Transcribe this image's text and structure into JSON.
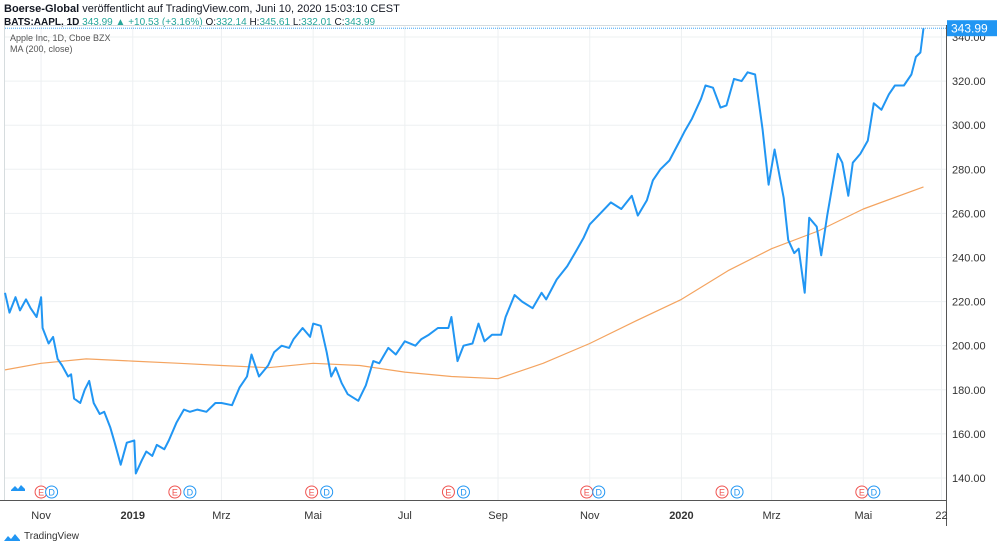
{
  "header": {
    "publisher": "Boerse-Global",
    "published_text": "veröffentlicht auf TradingView.com, Juni 10, 2020 15:03:10 CEST"
  },
  "quote": {
    "symbol": "BATS:AAPL, 1D",
    "last": "343.99",
    "arrow": "▲",
    "change": "+10.53 (+3.16%)",
    "open_label": "O:",
    "open": "332.14",
    "high_label": "H:",
    "high": "345.61",
    "low_label": "L:",
    "low": "332.01",
    "close_label": "C:",
    "close": "343.99"
  },
  "legend": {
    "series_name": "Apple Inc, 1D, Cboe BZX",
    "ma_name": "MA (200, close)"
  },
  "footer": {
    "brand": "TradingView"
  },
  "colors": {
    "price": "#2196f3",
    "ma": "#f4a460",
    "last_label_bg": "#2196f3",
    "earnings": "#ef5350",
    "dividend": "#2196f3"
  },
  "chart_data": {
    "type": "line",
    "ylim": [
      130,
      345
    ],
    "yticks": [
      140,
      160,
      180,
      200,
      220,
      240,
      260,
      280,
      300,
      320,
      340
    ],
    "ytick_labels": [
      "140.00",
      "160.00",
      "180.00",
      "200.00",
      "220.00",
      "240.00",
      "260.00",
      "280.00",
      "300.00",
      "320.00",
      "340.00"
    ],
    "last_value_label": "343.99",
    "x_range": [
      "2018-10-08",
      "2020-06-25"
    ],
    "xticks": [
      {
        "date": "2018-11-01",
        "label": "Nov",
        "bold": false
      },
      {
        "date": "2019-01-01",
        "label": "2019",
        "bold": true
      },
      {
        "date": "2019-03-01",
        "label": "Mrz",
        "bold": false
      },
      {
        "date": "2019-05-01",
        "label": "Mai",
        "bold": false
      },
      {
        "date": "2019-07-01",
        "label": "Jul",
        "bold": false
      },
      {
        "date": "2019-09-01",
        "label": "Sep",
        "bold": false
      },
      {
        "date": "2019-11-01",
        "label": "Nov",
        "bold": false
      },
      {
        "date": "2020-01-01",
        "label": "2020",
        "bold": true
      },
      {
        "date": "2020-03-01",
        "label": "Mrz",
        "bold": false
      },
      {
        "date": "2020-05-01",
        "label": "Mai",
        "bold": false
      },
      {
        "date": "2020-06-22",
        "label": "22",
        "bold": false
      }
    ],
    "grid": true,
    "series": [
      {
        "name": "Apple Inc, 1D, Cboe BZX",
        "points": [
          [
            "2018-10-08",
            224
          ],
          [
            "2018-10-11",
            215
          ],
          [
            "2018-10-15",
            222
          ],
          [
            "2018-10-18",
            216
          ],
          [
            "2018-10-22",
            221
          ],
          [
            "2018-10-25",
            217
          ],
          [
            "2018-10-29",
            213
          ],
          [
            "2018-11-01",
            222
          ],
          [
            "2018-11-02",
            208
          ],
          [
            "2018-11-06",
            201
          ],
          [
            "2018-11-09",
            204
          ],
          [
            "2018-11-12",
            194
          ],
          [
            "2018-11-15",
            191
          ],
          [
            "2018-11-19",
            186
          ],
          [
            "2018-11-21",
            187
          ],
          [
            "2018-11-23",
            176
          ],
          [
            "2018-11-27",
            174
          ],
          [
            "2018-11-30",
            180
          ],
          [
            "2018-12-03",
            184
          ],
          [
            "2018-12-06",
            174
          ],
          [
            "2018-12-10",
            169
          ],
          [
            "2018-12-13",
            170
          ],
          [
            "2018-12-17",
            163
          ],
          [
            "2018-12-20",
            156
          ],
          [
            "2018-12-24",
            146
          ],
          [
            "2018-12-28",
            156
          ],
          [
            "2019-01-02",
            157
          ],
          [
            "2019-01-03",
            142
          ],
          [
            "2019-01-07",
            148
          ],
          [
            "2019-01-10",
            152
          ],
          [
            "2019-01-14",
            150
          ],
          [
            "2019-01-17",
            155
          ],
          [
            "2019-01-22",
            153
          ],
          [
            "2019-01-25",
            157
          ],
          [
            "2019-01-30",
            165
          ],
          [
            "2019-02-04",
            171
          ],
          [
            "2019-02-08",
            170
          ],
          [
            "2019-02-13",
            171
          ],
          [
            "2019-02-19",
            170
          ],
          [
            "2019-02-25",
            174
          ],
          [
            "2019-03-01",
            174
          ],
          [
            "2019-03-08",
            173
          ],
          [
            "2019-03-13",
            181
          ],
          [
            "2019-03-18",
            186
          ],
          [
            "2019-03-21",
            196
          ],
          [
            "2019-03-26",
            186
          ],
          [
            "2019-04-01",
            191
          ],
          [
            "2019-04-05",
            197
          ],
          [
            "2019-04-10",
            200
          ],
          [
            "2019-04-15",
            199
          ],
          [
            "2019-04-18",
            203
          ],
          [
            "2019-04-24",
            208
          ],
          [
            "2019-04-29",
            204
          ],
          [
            "2019-05-01",
            210
          ],
          [
            "2019-05-06",
            209
          ],
          [
            "2019-05-10",
            197
          ],
          [
            "2019-05-13",
            186
          ],
          [
            "2019-05-16",
            190
          ],
          [
            "2019-05-20",
            183
          ],
          [
            "2019-05-24",
            178
          ],
          [
            "2019-05-31",
            175
          ],
          [
            "2019-06-05",
            182
          ],
          [
            "2019-06-10",
            193
          ],
          [
            "2019-06-14",
            192
          ],
          [
            "2019-06-20",
            199
          ],
          [
            "2019-06-25",
            196
          ],
          [
            "2019-07-01",
            202
          ],
          [
            "2019-07-08",
            200
          ],
          [
            "2019-07-12",
            203
          ],
          [
            "2019-07-17",
            205
          ],
          [
            "2019-07-23",
            208
          ],
          [
            "2019-07-30",
            208
          ],
          [
            "2019-08-01",
            213
          ],
          [
            "2019-08-05",
            193
          ],
          [
            "2019-08-09",
            200
          ],
          [
            "2019-08-15",
            201
          ],
          [
            "2019-08-19",
            210
          ],
          [
            "2019-08-23",
            202
          ],
          [
            "2019-08-28",
            205
          ],
          [
            "2019-09-03",
            205
          ],
          [
            "2019-09-06",
            213
          ],
          [
            "2019-09-12",
            223
          ],
          [
            "2019-09-17",
            220
          ],
          [
            "2019-09-24",
            217
          ],
          [
            "2019-09-30",
            224
          ],
          [
            "2019-10-03",
            221
          ],
          [
            "2019-10-10",
            230
          ],
          [
            "2019-10-17",
            236
          ],
          [
            "2019-10-23",
            243
          ],
          [
            "2019-10-28",
            249
          ],
          [
            "2019-11-01",
            255
          ],
          [
            "2019-11-08",
            260
          ],
          [
            "2019-11-15",
            265
          ],
          [
            "2019-11-22",
            262
          ],
          [
            "2019-11-29",
            268
          ],
          [
            "2019-12-03",
            259
          ],
          [
            "2019-12-09",
            266
          ],
          [
            "2019-12-13",
            275
          ],
          [
            "2019-12-18",
            280
          ],
          [
            "2019-12-24",
            284
          ],
          [
            "2019-12-31",
            293
          ],
          [
            "2020-01-03",
            297
          ],
          [
            "2020-01-08",
            303
          ],
          [
            "2020-01-14",
            312
          ],
          [
            "2020-01-17",
            318
          ],
          [
            "2020-01-22",
            317
          ],
          [
            "2020-01-27",
            308
          ],
          [
            "2020-01-31",
            309
          ],
          [
            "2020-02-05",
            321
          ],
          [
            "2020-02-10",
            320
          ],
          [
            "2020-02-14",
            324
          ],
          [
            "2020-02-19",
            323
          ],
          [
            "2020-02-24",
            298
          ],
          [
            "2020-02-28",
            273
          ],
          [
            "2020-03-03",
            289
          ],
          [
            "2020-03-09",
            267
          ],
          [
            "2020-03-12",
            248
          ],
          [
            "2020-03-16",
            242
          ],
          [
            "2020-03-19",
            244
          ],
          [
            "2020-03-23",
            224
          ],
          [
            "2020-03-26",
            258
          ],
          [
            "2020-03-31",
            254
          ],
          [
            "2020-04-03",
            241
          ],
          [
            "2020-04-07",
            259
          ],
          [
            "2020-04-14",
            287
          ],
          [
            "2020-04-17",
            283
          ],
          [
            "2020-04-21",
            268
          ],
          [
            "2020-04-24",
            283
          ],
          [
            "2020-04-29",
            287
          ],
          [
            "2020-05-04",
            293
          ],
          [
            "2020-05-08",
            310
          ],
          [
            "2020-05-13",
            307
          ],
          [
            "2020-05-18",
            314
          ],
          [
            "2020-05-22",
            318
          ],
          [
            "2020-05-28",
            318
          ],
          [
            "2020-06-02",
            323
          ],
          [
            "2020-06-05",
            331
          ],
          [
            "2020-06-08",
            333
          ],
          [
            "2020-06-10",
            344
          ]
        ]
      },
      {
        "name": "MA (200, close)",
        "points": [
          [
            "2018-10-08",
            189
          ],
          [
            "2018-11-01",
            192
          ],
          [
            "2018-12-01",
            194
          ],
          [
            "2019-01-01",
            193
          ],
          [
            "2019-02-01",
            192
          ],
          [
            "2019-03-01",
            191
          ],
          [
            "2019-04-01",
            190
          ],
          [
            "2019-05-01",
            192
          ],
          [
            "2019-06-01",
            191
          ],
          [
            "2019-07-01",
            188
          ],
          [
            "2019-08-01",
            186
          ],
          [
            "2019-09-01",
            185
          ],
          [
            "2019-10-01",
            192
          ],
          [
            "2019-11-01",
            201
          ],
          [
            "2019-12-01",
            211
          ],
          [
            "2020-01-01",
            221
          ],
          [
            "2020-02-01",
            234
          ],
          [
            "2020-03-01",
            244
          ],
          [
            "2020-04-01",
            252
          ],
          [
            "2020-05-01",
            262
          ],
          [
            "2020-06-10",
            272
          ]
        ]
      }
    ],
    "events": [
      {
        "date": "2018-11-01",
        "type": "E"
      },
      {
        "date": "2018-11-08",
        "type": "D"
      },
      {
        "date": "2019-01-29",
        "type": "E"
      },
      {
        "date": "2019-02-08",
        "type": "D"
      },
      {
        "date": "2019-04-30",
        "type": "E"
      },
      {
        "date": "2019-05-10",
        "type": "D"
      },
      {
        "date": "2019-07-30",
        "type": "E"
      },
      {
        "date": "2019-08-09",
        "type": "D"
      },
      {
        "date": "2019-10-30",
        "type": "E"
      },
      {
        "date": "2019-11-07",
        "type": "D"
      },
      {
        "date": "2020-01-28",
        "type": "E"
      },
      {
        "date": "2020-02-07",
        "type": "D"
      },
      {
        "date": "2020-04-30",
        "type": "E"
      },
      {
        "date": "2020-05-08",
        "type": "D"
      }
    ]
  }
}
